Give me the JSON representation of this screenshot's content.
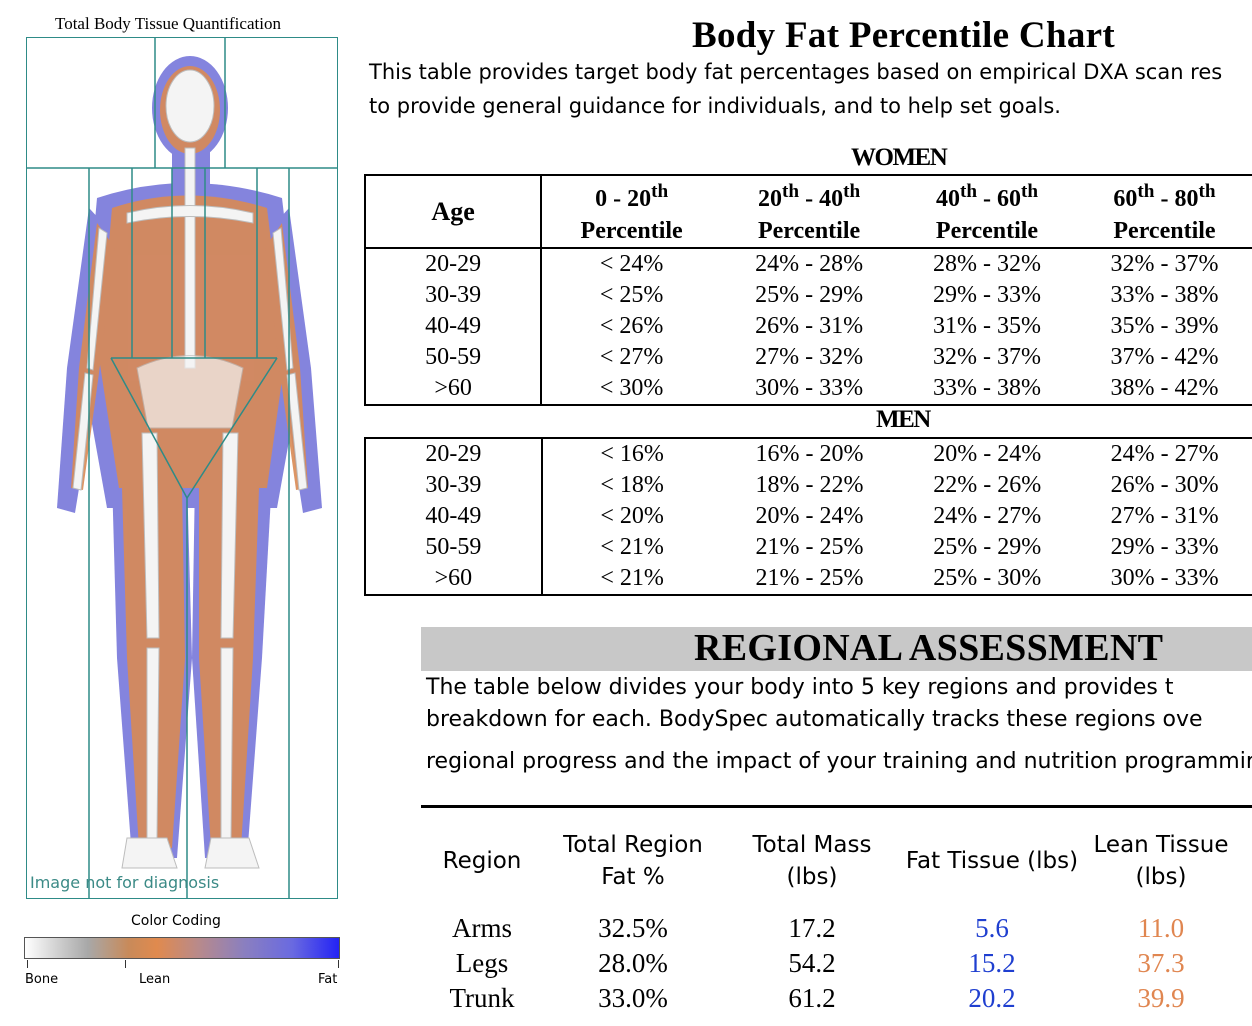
{
  "scan": {
    "title": "Total Body Tissue Quantification",
    "note": "Image not for diagnosis",
    "color_coding": {
      "title": "Color Coding",
      "labels": [
        "Bone",
        "Lean",
        "Fat"
      ],
      "colors": {
        "bone": "#ffffff",
        "lean": "#e08a4e",
        "fat": "#2323f5"
      }
    }
  },
  "page": {
    "title": "Body Fat Percentile Chart",
    "intro_line1": "This table provides target body fat percentages based on empirical DXA scan res",
    "intro_line2": "to provide general guidance for individuals, and to help set goals."
  },
  "percentile_table": {
    "women_label": "WOMEN",
    "men_label": "MEN",
    "headers": {
      "age": "Age",
      "percentile": "Percentile",
      "ranges": [
        {
          "a": "0 - 20",
          "a_sup": "th",
          "b": "",
          "b_sup": ""
        },
        {
          "a": "20",
          "a_sup": "th",
          "b": " - 40",
          "b_sup": "th"
        },
        {
          "a": "40",
          "a_sup": "th",
          "b": " - 60",
          "b_sup": "th"
        },
        {
          "a": "60",
          "a_sup": "th",
          "b": " - 80",
          "b_sup": "th"
        }
      ]
    },
    "women": [
      [
        "20-29",
        "< 24%",
        "24% - 28%",
        "28% - 32%",
        "32% - 37%"
      ],
      [
        "30-39",
        "< 25%",
        "25% - 29%",
        "29% - 33%",
        "33% - 38%"
      ],
      [
        "40-49",
        "< 26%",
        "26% - 31%",
        "31% - 35%",
        "35% - 39%"
      ],
      [
        "50-59",
        "< 27%",
        "27% - 32%",
        "32% - 37%",
        "37% - 42%"
      ],
      [
        ">60",
        "< 30%",
        "30% - 33%",
        "33% - 38%",
        "38% - 42%"
      ]
    ],
    "men": [
      [
        "20-29",
        "< 16%",
        "16% - 20%",
        "20% - 24%",
        "24% - 27%"
      ],
      [
        "30-39",
        "< 18%",
        "18% - 22%",
        "22% - 26%",
        "26% - 30%"
      ],
      [
        "40-49",
        "< 20%",
        "20% - 24%",
        "24% - 27%",
        "27% - 31%"
      ],
      [
        "50-59",
        "< 21%",
        "21% - 25%",
        "25% - 29%",
        "29% - 33%"
      ],
      [
        ">60",
        "< 21%",
        "21% - 25%",
        "25% - 30%",
        "30% - 33%"
      ]
    ]
  },
  "regional": {
    "title": "REGIONAL ASSESSMENT",
    "text_line1": "The  table  below  divides  your  body  into  5  key  regions  and  provides  t",
    "text_line2": "breakdown  for  each.   BodySpec  automatically  tracks  these  regions  ove",
    "text_line3": "regional progress and the impact of your training and nutrition programmir",
    "headers": {
      "region": "Region",
      "fat_pct_1": "Total Region",
      "fat_pct_2": "Fat %",
      "mass_1": "Total Mass",
      "mass_2": "(lbs)",
      "fat_tissue": "Fat Tissue (lbs)",
      "lean_1": "Lean Tissue",
      "lean_2": "(lbs)"
    },
    "rows": [
      {
        "region": "Arms",
        "fat_pct": "32.5%",
        "total_mass": "17.2",
        "fat_tissue": "5.6",
        "lean_tissue": "11.0"
      },
      {
        "region": "Legs",
        "fat_pct": "28.0%",
        "total_mass": "54.2",
        "fat_tissue": "15.2",
        "lean_tissue": "37.3"
      },
      {
        "region": "Trunk",
        "fat_pct": "33.0%",
        "total_mass": "61.2",
        "fat_tissue": "20.2",
        "lean_tissue": "39.9"
      }
    ],
    "colors": {
      "fat": "#1f3fd0",
      "lean": "#e08650"
    }
  }
}
